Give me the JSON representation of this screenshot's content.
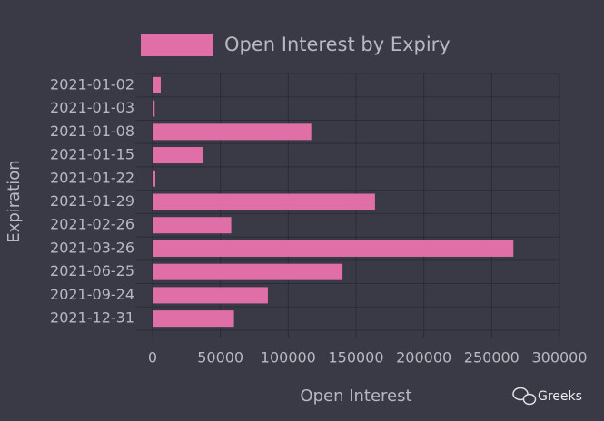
{
  "chart_data": {
    "type": "bar",
    "orientation": "horizontal",
    "categories": [
      "2021-01-02",
      "2021-01-03",
      "2021-01-08",
      "2021-01-15",
      "2021-01-22",
      "2021-01-29",
      "2021-02-26",
      "2021-03-26",
      "2021-06-25",
      "2021-09-24",
      "2021-12-31"
    ],
    "series": [
      {
        "name": "Open Interest by Expiry",
        "color": "#e06fa8",
        "values": [
          6000,
          1500,
          117000,
          37000,
          2000,
          164000,
          58000,
          266000,
          140000,
          85000,
          60000
        ]
      }
    ],
    "xlabel": "Open Interest",
    "ylabel": "Expiration",
    "xlim": [
      0,
      300000
    ],
    "xticks": [
      0,
      50000,
      100000,
      150000,
      200000,
      250000,
      300000
    ],
    "grid": true,
    "legend": "top",
    "watermark": "Greeks"
  }
}
